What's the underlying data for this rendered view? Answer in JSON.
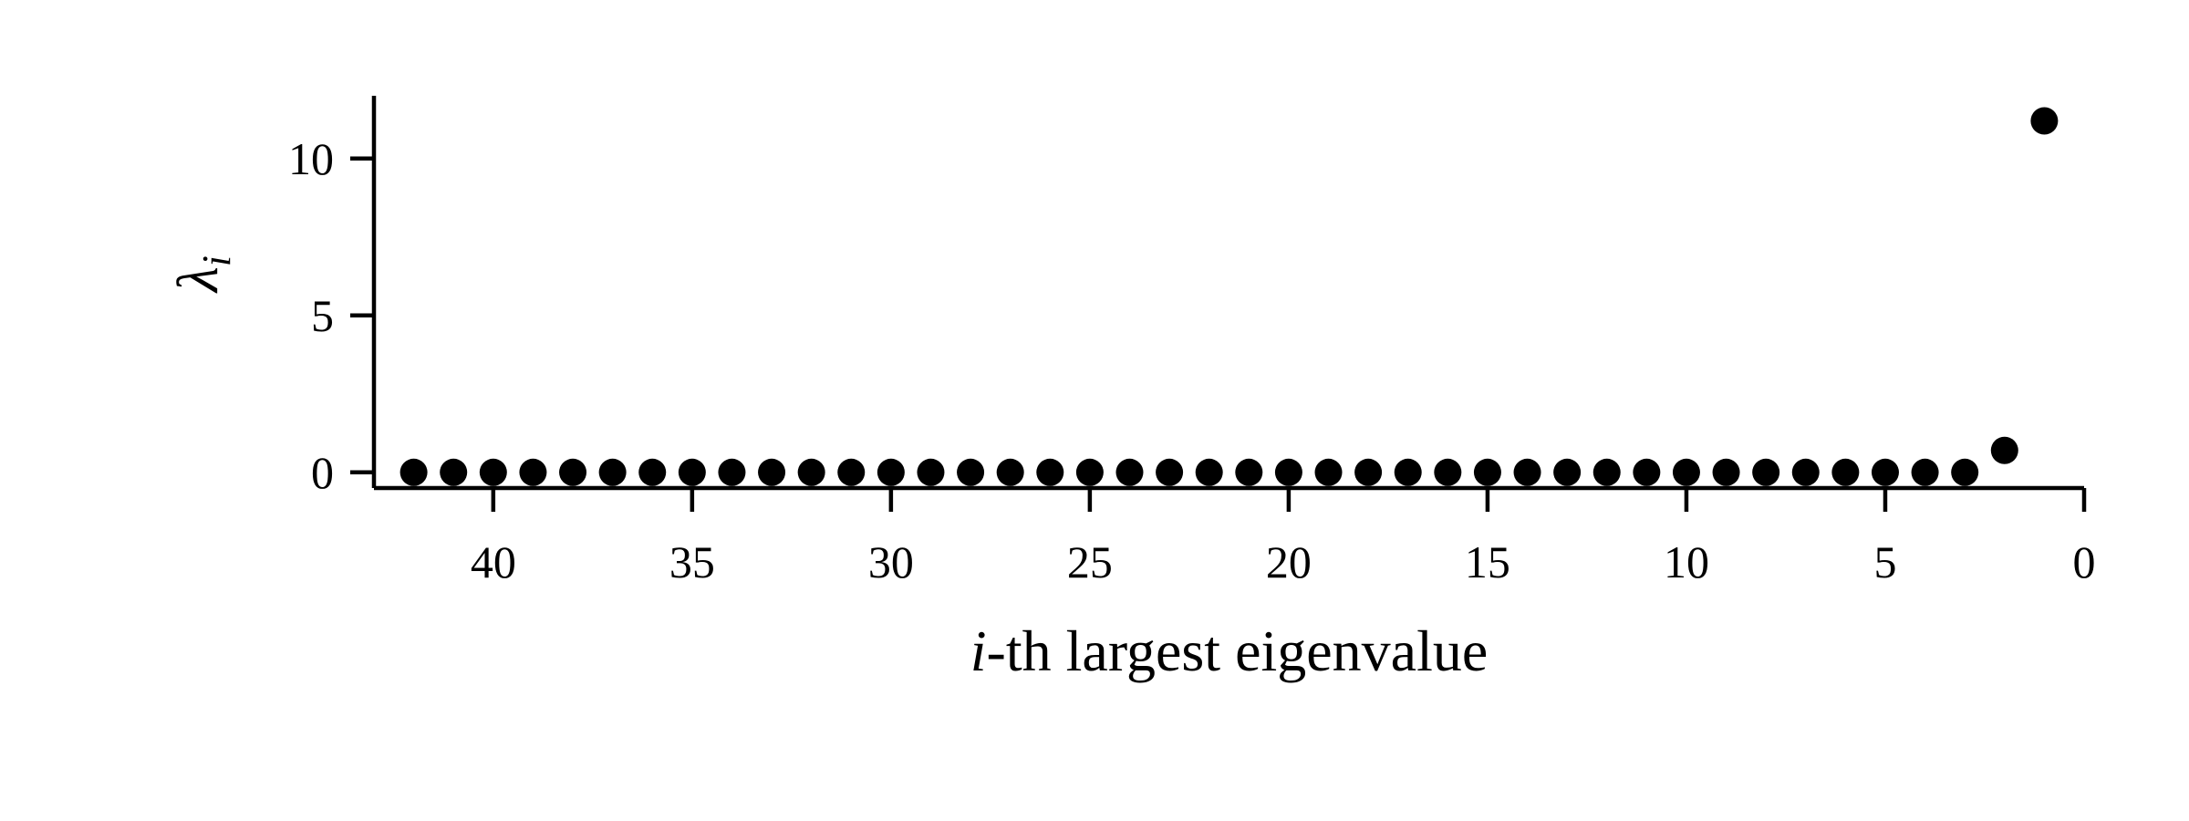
{
  "chart_data": {
    "type": "scatter",
    "title": "",
    "xlabel": {
      "var": "i",
      "rest": "-th largest eigenvalue"
    },
    "ylabel": {
      "symbol": "λ",
      "subscript": "i"
    },
    "xlim": [
      43,
      0
    ],
    "ylim": [
      -0.5,
      12
    ],
    "x_reversed": true,
    "xticks": [
      40,
      35,
      30,
      25,
      20,
      15,
      10,
      5,
      0
    ],
    "yticks": [
      0,
      5,
      10
    ],
    "grid": false,
    "marker_color": "#000000",
    "series": [
      {
        "x": [
          42,
          41,
          40,
          39,
          38,
          37,
          36,
          35,
          34,
          33,
          32,
          31,
          30,
          29,
          28,
          27,
          26,
          25,
          24,
          23,
          22,
          21,
          20,
          19,
          18,
          17,
          16,
          15,
          14,
          13,
          12,
          11,
          10,
          9,
          8,
          7,
          6,
          5,
          4,
          3,
          2,
          1
        ],
        "y": [
          0,
          0,
          0,
          0,
          0,
          0,
          0,
          0,
          0,
          0,
          0,
          0,
          0,
          0,
          0,
          0,
          0,
          0,
          0,
          0,
          0,
          0,
          0,
          0,
          0,
          0,
          0,
          0,
          0,
          0,
          0,
          0,
          0,
          0,
          0,
          0,
          0,
          0,
          0,
          0,
          0.7,
          11.2
        ]
      }
    ]
  }
}
